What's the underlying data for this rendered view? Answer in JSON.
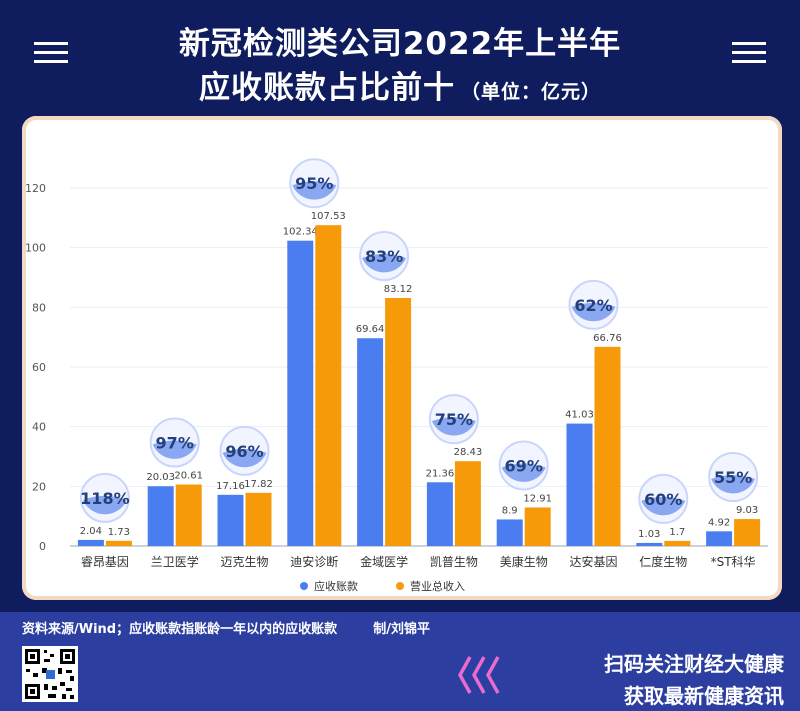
{
  "header": {
    "title_line1": "新冠检测类公司2022年上半年",
    "title_line2": "应收账款占比前十",
    "unit": "（单位：亿元）"
  },
  "footer": {
    "source": "资料来源/Wind；应收账款指账龄一年以内的应收账款        制/刘锦平",
    "promo_line1": "扫码关注财经大健康",
    "promo_line2": "获取最新健康资讯"
  },
  "colors": {
    "background": "#0f1d5e",
    "receivables": "#4a7ef0",
    "revenue": "#f79a0a",
    "bubble": "#8aa8f2"
  },
  "chart_data": {
    "type": "bar",
    "categories": [
      "睿昂基因",
      "兰卫医学",
      "迈克生物",
      "迪安诊断",
      "金域医学",
      "凯普生物",
      "美康生物",
      "达安基因",
      "仁度生物",
      "*ST科华"
    ],
    "series": [
      {
        "name": "应收账款",
        "values": [
          2.04,
          20.03,
          17.16,
          102.34,
          69.64,
          21.36,
          8.9,
          41.03,
          1.03,
          4.92
        ]
      },
      {
        "name": "营业总收入",
        "values": [
          1.73,
          20.61,
          17.82,
          107.53,
          83.12,
          28.43,
          12.91,
          66.76,
          1.7,
          9.03
        ]
      }
    ],
    "value_labels": [
      [
        "2.04",
        "20.03",
        "17.16",
        "102.34",
        "69.64",
        "21.36",
        "8.9",
        "41.03",
        "1.03",
        "4.92"
      ],
      [
        "1.73",
        "20.61",
        "17.82",
        "107.53",
        "83.12",
        "28.43",
        "12.91",
        "66.76",
        "1.7",
        "9.03"
      ]
    ],
    "ratios": [
      "118%",
      "97%",
      "96%",
      "95%",
      "83%",
      "75%",
      "69%",
      "62%",
      "60%",
      "55%"
    ],
    "yticks": [
      0,
      20,
      40,
      60,
      80,
      100,
      120
    ],
    "ylim": [
      0,
      130
    ],
    "grid": true,
    "legend_position": "bottom"
  }
}
